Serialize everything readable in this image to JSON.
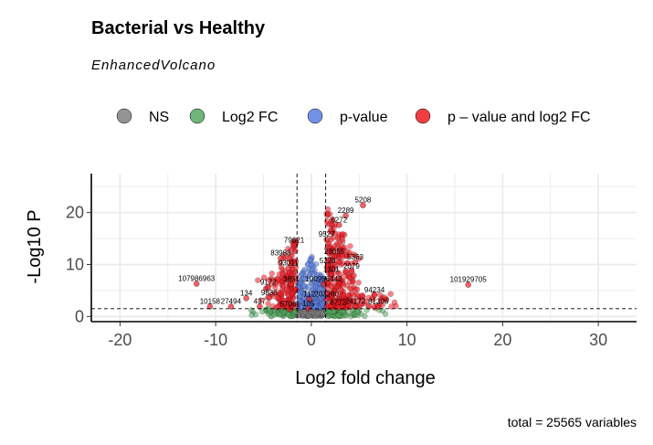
{
  "chart_data": {
    "type": "scatter",
    "title": "Bacterial vs Healthy",
    "subtitle": "EnhancedVolcano",
    "xlabel": "Log2 fold change",
    "ylabel": "-Log10 P",
    "caption": "total = 25565 variables",
    "xlim": [
      -23,
      34
    ],
    "ylim": [
      -1,
      27.5
    ],
    "x_ticks": [
      -20,
      -10,
      0,
      10,
      20,
      30
    ],
    "y_ticks": [
      0,
      10,
      20
    ],
    "fc_cutoff": 1.5,
    "p_cutoff_log10": 1.5,
    "grid": true,
    "legend_position": "top",
    "legend": [
      {
        "key": "NS",
        "label": "NS",
        "color": "#808080"
      },
      {
        "key": "FC",
        "label": "Log2 FC",
        "color": "#55a85f"
      },
      {
        "key": "P",
        "label": "p-value",
        "color": "#5b7fe0"
      },
      {
        "key": "FCP",
        "label": "p – value and log2 FC",
        "color": "#ee1c25"
      }
    ],
    "labeled_points": [
      {
        "label": "5208",
        "x": 5.4,
        "y": 21.4
      },
      {
        "label": "2289",
        "x": 3.6,
        "y": 19.4
      },
      {
        "label": "6272",
        "x": 2.9,
        "y": 17.6
      },
      {
        "label": "9527",
        "x": 1.6,
        "y": 14.8
      },
      {
        "label": "79621",
        "x": -1.8,
        "y": 13.7
      },
      {
        "label": "83988",
        "x": -3.2,
        "y": 11.2
      },
      {
        "label": "23055",
        "x": 2.4,
        "y": 11.5
      },
      {
        "label": "5363",
        "x": 4.6,
        "y": 10.4
      },
      {
        "label": "5226",
        "x": 1.7,
        "y": 9.7
      },
      {
        "label": "93011",
        "x": -2.4,
        "y": 9.3
      },
      {
        "label": "2079",
        "x": 4.2,
        "y": 8.7
      },
      {
        "label": "1301",
        "x": 2.1,
        "y": 8.1
      },
      {
        "label": "107986963",
        "x": -12.0,
        "y": 6.3
      },
      {
        "label": "101929705",
        "x": 16.4,
        "y": 6.1
      },
      {
        "label": "3851",
        "x": -2.1,
        "y": 6.2
      },
      {
        "label": "100996442",
        "x": 1.3,
        "y": 6.2
      },
      {
        "label": "9172",
        "x": -4.5,
        "y": 5.6
      },
      {
        "label": "94234",
        "x": 6.6,
        "y": 4.1
      },
      {
        "label": "134",
        "x": -6.8,
        "y": 3.5
      },
      {
        "label": "9836",
        "x": -4.4,
        "y": 3.6
      },
      {
        "label": "112",
        "x": -0.2,
        "y": 3.3
      },
      {
        "label": "203260",
        "x": 1.6,
        "y": 3.3
      },
      {
        "label": "10158",
        "x": -10.6,
        "y": 1.9
      },
      {
        "label": "27494",
        "x": -8.4,
        "y": 1.9
      },
      {
        "label": "437",
        "x": -5.4,
        "y": 1.9
      },
      {
        "label": "81306",
        "x": 7.0,
        "y": 1.9
      },
      {
        "label": "24172",
        "x": 4.6,
        "y": 1.9
      },
      {
        "label": "8772",
        "x": 2.8,
        "y": 1.7
      },
      {
        "label": "57061",
        "x": -2.2,
        "y": 1.4
      },
      {
        "label": "105",
        "x": -0.3,
        "y": 1.5
      }
    ]
  }
}
